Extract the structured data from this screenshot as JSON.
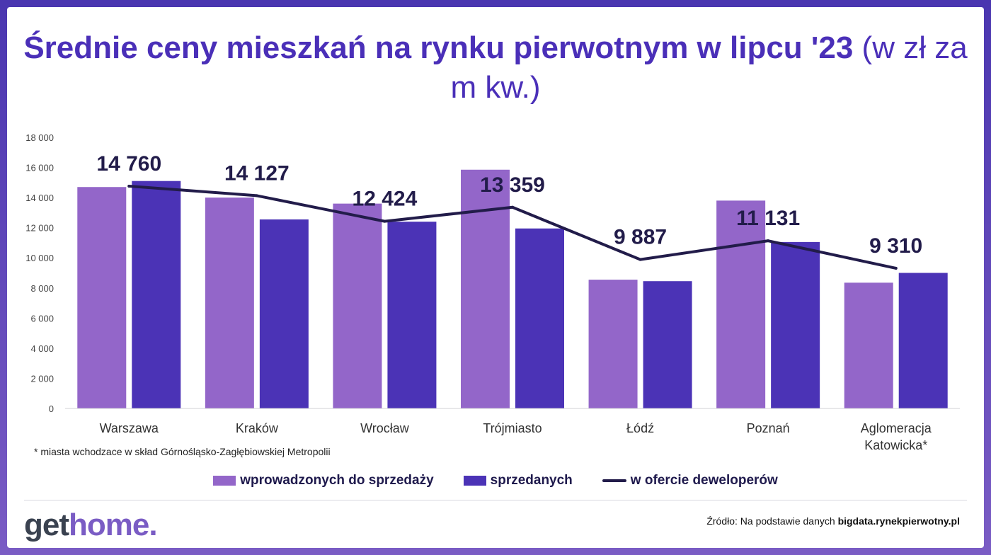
{
  "title": {
    "main": "Średnie ceny mieszkań na rynku pierwotnym w lipcu '23",
    "unit": "(w zł za m kw.)"
  },
  "colors": {
    "series_introduced": "#9366c9",
    "series_sold": "#4b33b6",
    "series_offer": "#221c4a",
    "title": "#4a2fb8"
  },
  "footnote": "* miasta wchodzace w skład Górnośląsko-Zagłębiowskiej Metropolii",
  "legend": {
    "introduced": "wprowadzonych do sprzedaży",
    "sold": "sprzedanych",
    "offer": "w ofercie deweloperów"
  },
  "logo": {
    "part1": "get",
    "part2": "home."
  },
  "source": {
    "prefix": "Źródło: Na podstawie danych ",
    "site": "bigdata.rynekpierwotny.pl"
  },
  "chart_data": {
    "type": "bar",
    "categories": [
      "Warszawa",
      "Kraków",
      "Wrocław",
      "Trójmiasto",
      "Łódź",
      "Poznań",
      "Aglomeracja Katowicka*"
    ],
    "category_lines": [
      [
        "Warszawa"
      ],
      [
        "Kraków"
      ],
      [
        "Wrocław"
      ],
      [
        "Trójmiasto"
      ],
      [
        "Łódź"
      ],
      [
        "Poznań"
      ],
      [
        "Aglomeracja",
        "Katowicka*"
      ]
    ],
    "series": [
      {
        "name": "wprowadzonych do sprzedaży",
        "kind": "bar",
        "values": [
          14700,
          14000,
          13600,
          15850,
          8550,
          13800,
          8350
        ]
      },
      {
        "name": "sprzedanych",
        "kind": "bar",
        "values": [
          15100,
          12550,
          12400,
          11950,
          8450,
          11050,
          9000
        ]
      },
      {
        "name": "w ofercie deweloperów",
        "kind": "line",
        "values": [
          14760,
          14127,
          12424,
          13359,
          9887,
          11131,
          9310
        ],
        "labels": [
          "14 760",
          "14 127",
          "12 424",
          "13 359",
          "9 887",
          "11 131",
          "9 310"
        ]
      }
    ],
    "ylim": [
      0,
      18000
    ],
    "yticks": [
      0,
      2000,
      4000,
      6000,
      8000,
      10000,
      12000,
      14000,
      16000,
      18000
    ],
    "ytick_labels": [
      "0",
      "2 000",
      "4 000",
      "6 000",
      "8 000",
      "10 000",
      "12 000",
      "14 000",
      "16 000",
      "18 000"
    ],
    "grid": false,
    "legend_position": "bottom"
  }
}
